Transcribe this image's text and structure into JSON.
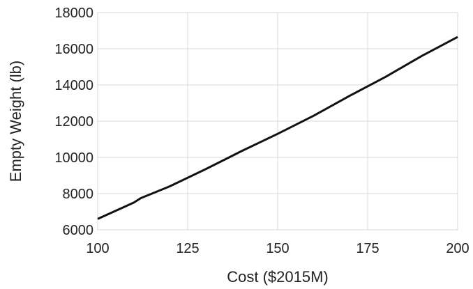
{
  "chart_data": {
    "type": "line",
    "title": "",
    "xlabel": "Cost ($2015M)",
    "ylabel": "Empty Weight (lb)",
    "xlim": [
      100,
      200
    ],
    "ylim": [
      6000,
      18000
    ],
    "xticks": [
      100,
      125,
      150,
      175,
      200
    ],
    "yticks": [
      6000,
      8000,
      10000,
      12000,
      14000,
      16000,
      18000
    ],
    "xtick_labels": [
      "100",
      "125",
      "150",
      "175",
      "200"
    ],
    "ytick_labels": [
      "6000",
      "8000",
      "10000",
      "12000",
      "14000",
      "16000",
      "18000"
    ],
    "grid": true,
    "legend": "none",
    "line_color": "#111111",
    "series": [
      {
        "x": [
          100,
          110,
          112,
          120,
          130,
          138,
          140,
          150,
          160,
          170,
          180,
          190,
          200
        ],
        "y": [
          6600,
          7500,
          7750,
          8400,
          9350,
          10150,
          10350,
          11300,
          12300,
          13400,
          14450,
          15600,
          16650
        ]
      }
    ]
  }
}
